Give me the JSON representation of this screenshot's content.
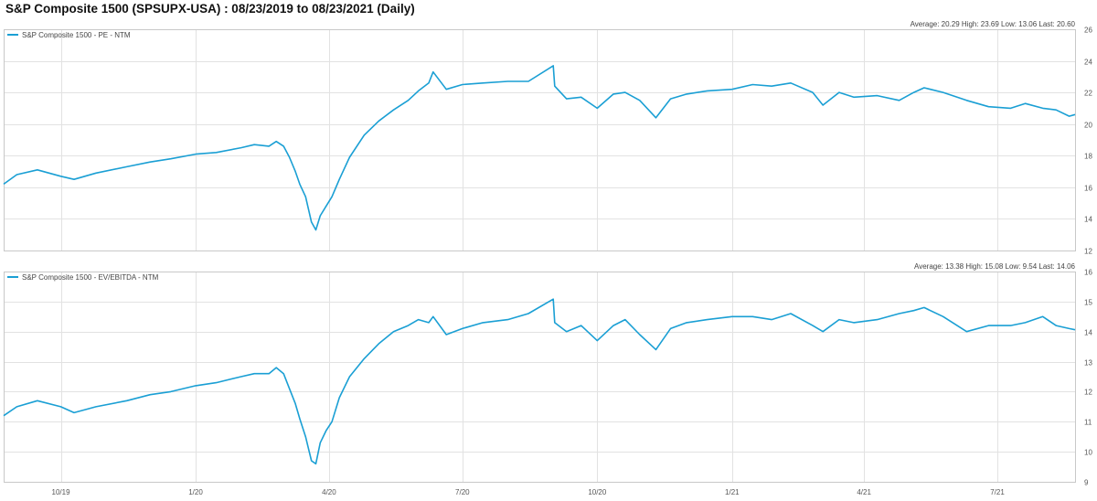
{
  "title": "S&P Composite 1500 (SPSUPX-USA)   :   08/23/2019 to 08/23/2021 (Daily)",
  "colors": {
    "series": "#1a9fd4",
    "grid": "#e2e2e2"
  },
  "chart_data": [
    {
      "type": "line",
      "legend": "S&P Composite 1500 - PE - NTM",
      "legend_position": "top-left",
      "stats": "Average: 20.29 High: 23.69 Low: 13.06 Last: 20.60",
      "y_axis_side": "right",
      "ylim": [
        12,
        26
      ],
      "yticks": [
        12,
        14,
        16,
        18,
        20,
        22,
        24,
        26
      ],
      "grid": true,
      "x": [
        "2019-08-23",
        "2019-09-01",
        "2019-09-15",
        "2019-10-01",
        "2019-10-10",
        "2019-10-25",
        "2019-11-15",
        "2019-12-01",
        "2019-12-15",
        "2020-01-01",
        "2020-01-15",
        "2020-02-01",
        "2020-02-10",
        "2020-02-20",
        "2020-02-25",
        "2020-03-01",
        "2020-03-05",
        "2020-03-09",
        "2020-03-12",
        "2020-03-16",
        "2020-03-18",
        "2020-03-20",
        "2020-03-23",
        "2020-03-26",
        "2020-03-30",
        "2020-04-03",
        "2020-04-08",
        "2020-04-15",
        "2020-04-25",
        "2020-05-05",
        "2020-05-15",
        "2020-05-25",
        "2020-06-01",
        "2020-06-08",
        "2020-06-11",
        "2020-06-20",
        "2020-07-01",
        "2020-07-15",
        "2020-08-01",
        "2020-08-15",
        "2020-09-01",
        "2020-09-02",
        "2020-09-10",
        "2020-09-20",
        "2020-10-01",
        "2020-10-12",
        "2020-10-20",
        "2020-10-30",
        "2020-11-10",
        "2020-11-20",
        "2020-12-01",
        "2020-12-15",
        "2021-01-01",
        "2021-01-15",
        "2021-01-28",
        "2021-02-10",
        "2021-02-25",
        "2021-03-04",
        "2021-03-15",
        "2021-03-25",
        "2021-04-10",
        "2021-04-25",
        "2021-05-05",
        "2021-05-12",
        "2021-05-25",
        "2021-06-10",
        "2021-06-25",
        "2021-07-10",
        "2021-07-20",
        "2021-08-01",
        "2021-08-10",
        "2021-08-19",
        "2021-08-23"
      ],
      "values": [
        16.2,
        16.8,
        17.1,
        16.7,
        16.5,
        16.9,
        17.3,
        17.6,
        17.8,
        18.1,
        18.2,
        18.5,
        18.7,
        18.6,
        18.9,
        18.6,
        17.9,
        17.0,
        16.2,
        15.4,
        14.6,
        13.8,
        13.3,
        14.2,
        14.8,
        15.4,
        16.5,
        17.9,
        19.3,
        20.2,
        20.9,
        21.5,
        22.1,
        22.6,
        23.3,
        22.2,
        22.5,
        22.6,
        22.7,
        22.7,
        23.69,
        22.4,
        21.6,
        21.7,
        21.0,
        21.9,
        22.0,
        21.5,
        20.4,
        21.6,
        21.9,
        22.1,
        22.2,
        22.5,
        22.4,
        22.6,
        22.0,
        21.2,
        22.0,
        21.7,
        21.8,
        21.5,
        22.0,
        22.3,
        22.0,
        21.5,
        21.1,
        21.0,
        21.3,
        21.0,
        20.9,
        20.5,
        20.6
      ]
    },
    {
      "type": "line",
      "legend": "S&P Composite 1500 - EV/EBITDA - NTM",
      "legend_position": "top-left",
      "stats": "Average: 13.38 High: 15.08 Low: 9.54 Last: 14.06",
      "y_axis_side": "right",
      "ylim": [
        9,
        16
      ],
      "yticks": [
        9,
        10,
        11,
        12,
        13,
        14,
        15,
        16
      ],
      "grid": true,
      "x": [
        "2019-08-23",
        "2019-09-01",
        "2019-09-15",
        "2019-10-01",
        "2019-10-10",
        "2019-10-25",
        "2019-11-15",
        "2019-12-01",
        "2019-12-15",
        "2020-01-01",
        "2020-01-15",
        "2020-02-01",
        "2020-02-10",
        "2020-02-20",
        "2020-02-25",
        "2020-03-01",
        "2020-03-05",
        "2020-03-09",
        "2020-03-12",
        "2020-03-16",
        "2020-03-18",
        "2020-03-20",
        "2020-03-23",
        "2020-03-26",
        "2020-03-30",
        "2020-04-03",
        "2020-04-08",
        "2020-04-15",
        "2020-04-25",
        "2020-05-05",
        "2020-05-15",
        "2020-05-25",
        "2020-06-01",
        "2020-06-08",
        "2020-06-11",
        "2020-06-20",
        "2020-07-01",
        "2020-07-15",
        "2020-08-01",
        "2020-08-15",
        "2020-09-01",
        "2020-09-02",
        "2020-09-10",
        "2020-09-20",
        "2020-10-01",
        "2020-10-12",
        "2020-10-20",
        "2020-10-30",
        "2020-11-10",
        "2020-11-20",
        "2020-12-01",
        "2020-12-15",
        "2021-01-01",
        "2021-01-15",
        "2021-01-28",
        "2021-02-10",
        "2021-02-25",
        "2021-03-04",
        "2021-03-15",
        "2021-03-25",
        "2021-04-10",
        "2021-04-25",
        "2021-05-05",
        "2021-05-12",
        "2021-05-25",
        "2021-06-10",
        "2021-06-25",
        "2021-07-10",
        "2021-07-20",
        "2021-08-01",
        "2021-08-10",
        "2021-08-19",
        "2021-08-23"
      ],
      "values": [
        11.2,
        11.5,
        11.7,
        11.5,
        11.3,
        11.5,
        11.7,
        11.9,
        12.0,
        12.2,
        12.3,
        12.5,
        12.6,
        12.6,
        12.8,
        12.6,
        12.1,
        11.6,
        11.1,
        10.5,
        10.1,
        9.7,
        9.6,
        10.3,
        10.7,
        11.0,
        11.8,
        12.5,
        13.1,
        13.6,
        14.0,
        14.2,
        14.4,
        14.3,
        14.5,
        13.9,
        14.1,
        14.3,
        14.4,
        14.6,
        15.08,
        14.3,
        14.0,
        14.2,
        13.7,
        14.2,
        14.4,
        13.9,
        13.4,
        14.1,
        14.3,
        14.4,
        14.5,
        14.5,
        14.4,
        14.6,
        14.2,
        14.0,
        14.4,
        14.3,
        14.4,
        14.6,
        14.7,
        14.8,
        14.5,
        14.0,
        14.2,
        14.2,
        14.3,
        14.5,
        14.2,
        14.1,
        14.06
      ]
    }
  ],
  "x_axis": {
    "range": [
      "2019-08-23",
      "2021-08-23"
    ],
    "ticks": [
      {
        "date": "2019-10-01",
        "label": "10/19"
      },
      {
        "date": "2020-01-01",
        "label": "1/20"
      },
      {
        "date": "2020-04-01",
        "label": "4/20"
      },
      {
        "date": "2020-07-01",
        "label": "7/20"
      },
      {
        "date": "2020-10-01",
        "label": "10/20"
      },
      {
        "date": "2021-01-01",
        "label": "1/21"
      },
      {
        "date": "2021-04-01",
        "label": "4/21"
      },
      {
        "date": "2021-07-01",
        "label": "7/21"
      }
    ]
  }
}
